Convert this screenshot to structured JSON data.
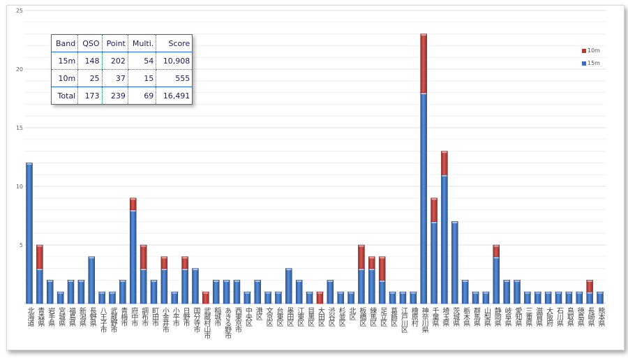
{
  "table": {
    "headers": [
      "Band",
      "QSO",
      "Point",
      "Multi.",
      "Score"
    ],
    "rows": [
      [
        "15m",
        "148",
        "202",
        "54",
        "10,908"
      ],
      [
        "10m",
        "25",
        "37",
        "15",
        "555"
      ],
      [
        "Total",
        "173",
        "239",
        "69",
        "16,491"
      ]
    ]
  },
  "chart_data": {
    "type": "bar",
    "stacked": true,
    "title": "",
    "xlabel": "",
    "ylabel": "",
    "ylim": [
      0,
      25
    ],
    "yticks": [
      5,
      10,
      15,
      20,
      25
    ],
    "grid": true,
    "legend": "right",
    "colors": {
      "15m": "#3a6fbf",
      "10m": "#b83a36"
    },
    "categories": [
      "北海道",
      "青森県",
      "岩手県",
      "宮城県",
      "福島県",
      "新潟県",
      "長野県",
      "八王子市",
      "武蔵野市",
      "青梅市",
      "府中市",
      "調布市",
      "町田市",
      "小金井市",
      "小平市",
      "日野市",
      "国分寺市",
      "武蔵村山市",
      "稲城市",
      "あきる野市",
      "西東京市",
      "中央区",
      "港区",
      "文京区",
      "台東区",
      "墨田区",
      "江東区",
      "目黒区",
      "大田区",
      "渋谷区",
      "杉並区",
      "北区",
      "板橋区",
      "練馬区",
      "足立区",
      "葛飾区",
      "江戸川区",
      "檜原村",
      "神奈川県",
      "千葉県",
      "埼玉県",
      "茨城県",
      "栃木県",
      "群馬県",
      "山梨県",
      "静岡県",
      "岐阜県",
      "愛知県",
      "三重県",
      "滋賀県",
      "大阪府",
      "石川県",
      "鳥取県",
      "徳島県",
      "長崎県",
      "熊本県"
    ],
    "series": [
      {
        "name": "15m",
        "values": [
          12,
          3,
          2,
          1,
          2,
          2,
          4,
          1,
          1,
          2,
          8,
          3,
          2,
          3,
          1,
          3,
          3,
          0,
          2,
          2,
          2,
          1,
          2,
          1,
          1,
          3,
          2,
          1,
          0,
          2,
          1,
          1,
          3,
          3,
          2,
          1,
          1,
          1,
          18,
          7,
          11,
          7,
          2,
          1,
          1,
          4,
          2,
          2,
          1,
          1,
          1,
          1,
          1,
          1,
          1,
          1
        ]
      },
      {
        "name": "10m",
        "values": [
          0,
          2,
          0,
          0,
          0,
          0,
          0,
          0,
          0,
          0,
          1,
          2,
          0,
          1,
          0,
          1,
          0,
          1,
          0,
          0,
          0,
          0,
          0,
          0,
          0,
          0,
          0,
          0,
          1,
          0,
          0,
          0,
          2,
          1,
          2,
          0,
          0,
          0,
          5,
          2,
          2,
          0,
          0,
          0,
          0,
          1,
          0,
          0,
          0,
          0,
          0,
          0,
          0,
          0,
          1,
          0
        ]
      }
    ]
  }
}
